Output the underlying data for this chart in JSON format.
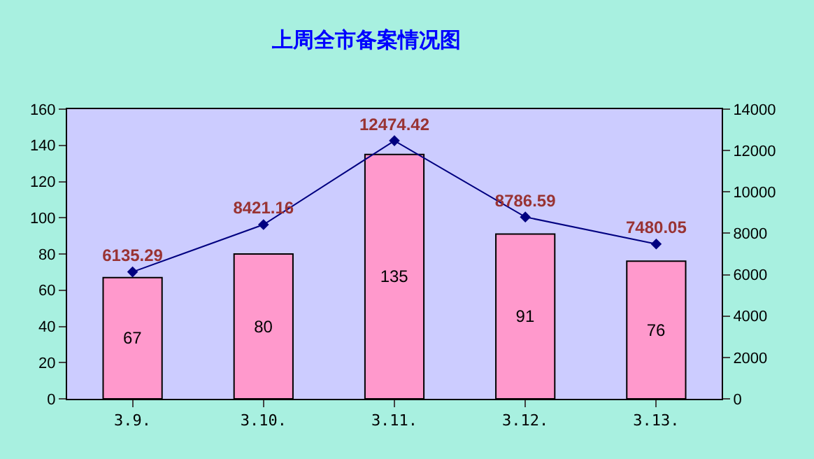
{
  "chart_data": {
    "type": "bar",
    "title": "上周全市备案情况图",
    "categories": [
      "3.9.",
      "3.10.",
      "3.11.",
      "3.12.",
      "3.13."
    ],
    "series": [
      {
        "color": "#ff99cc",
        "values": [
          67,
          80,
          135,
          91,
          76
        ]
      },
      {
        "type": "line",
        "axis": "y2",
        "color": "#000080",
        "values": [
          6135.29,
          8421.16,
          12474.42,
          8786.59,
          7480.05
        ]
      }
    ],
    "ylim": [
      0,
      160
    ],
    "yticks": [
      0,
      20,
      40,
      60,
      80,
      100,
      120,
      140,
      160
    ],
    "y2lim": [
      0,
      14000
    ],
    "y2ticks": [
      0,
      2000,
      4000,
      6000,
      8000,
      10000,
      12000,
      14000
    ],
    "marker": "diamond",
    "data_labels": true,
    "legend": false
  }
}
